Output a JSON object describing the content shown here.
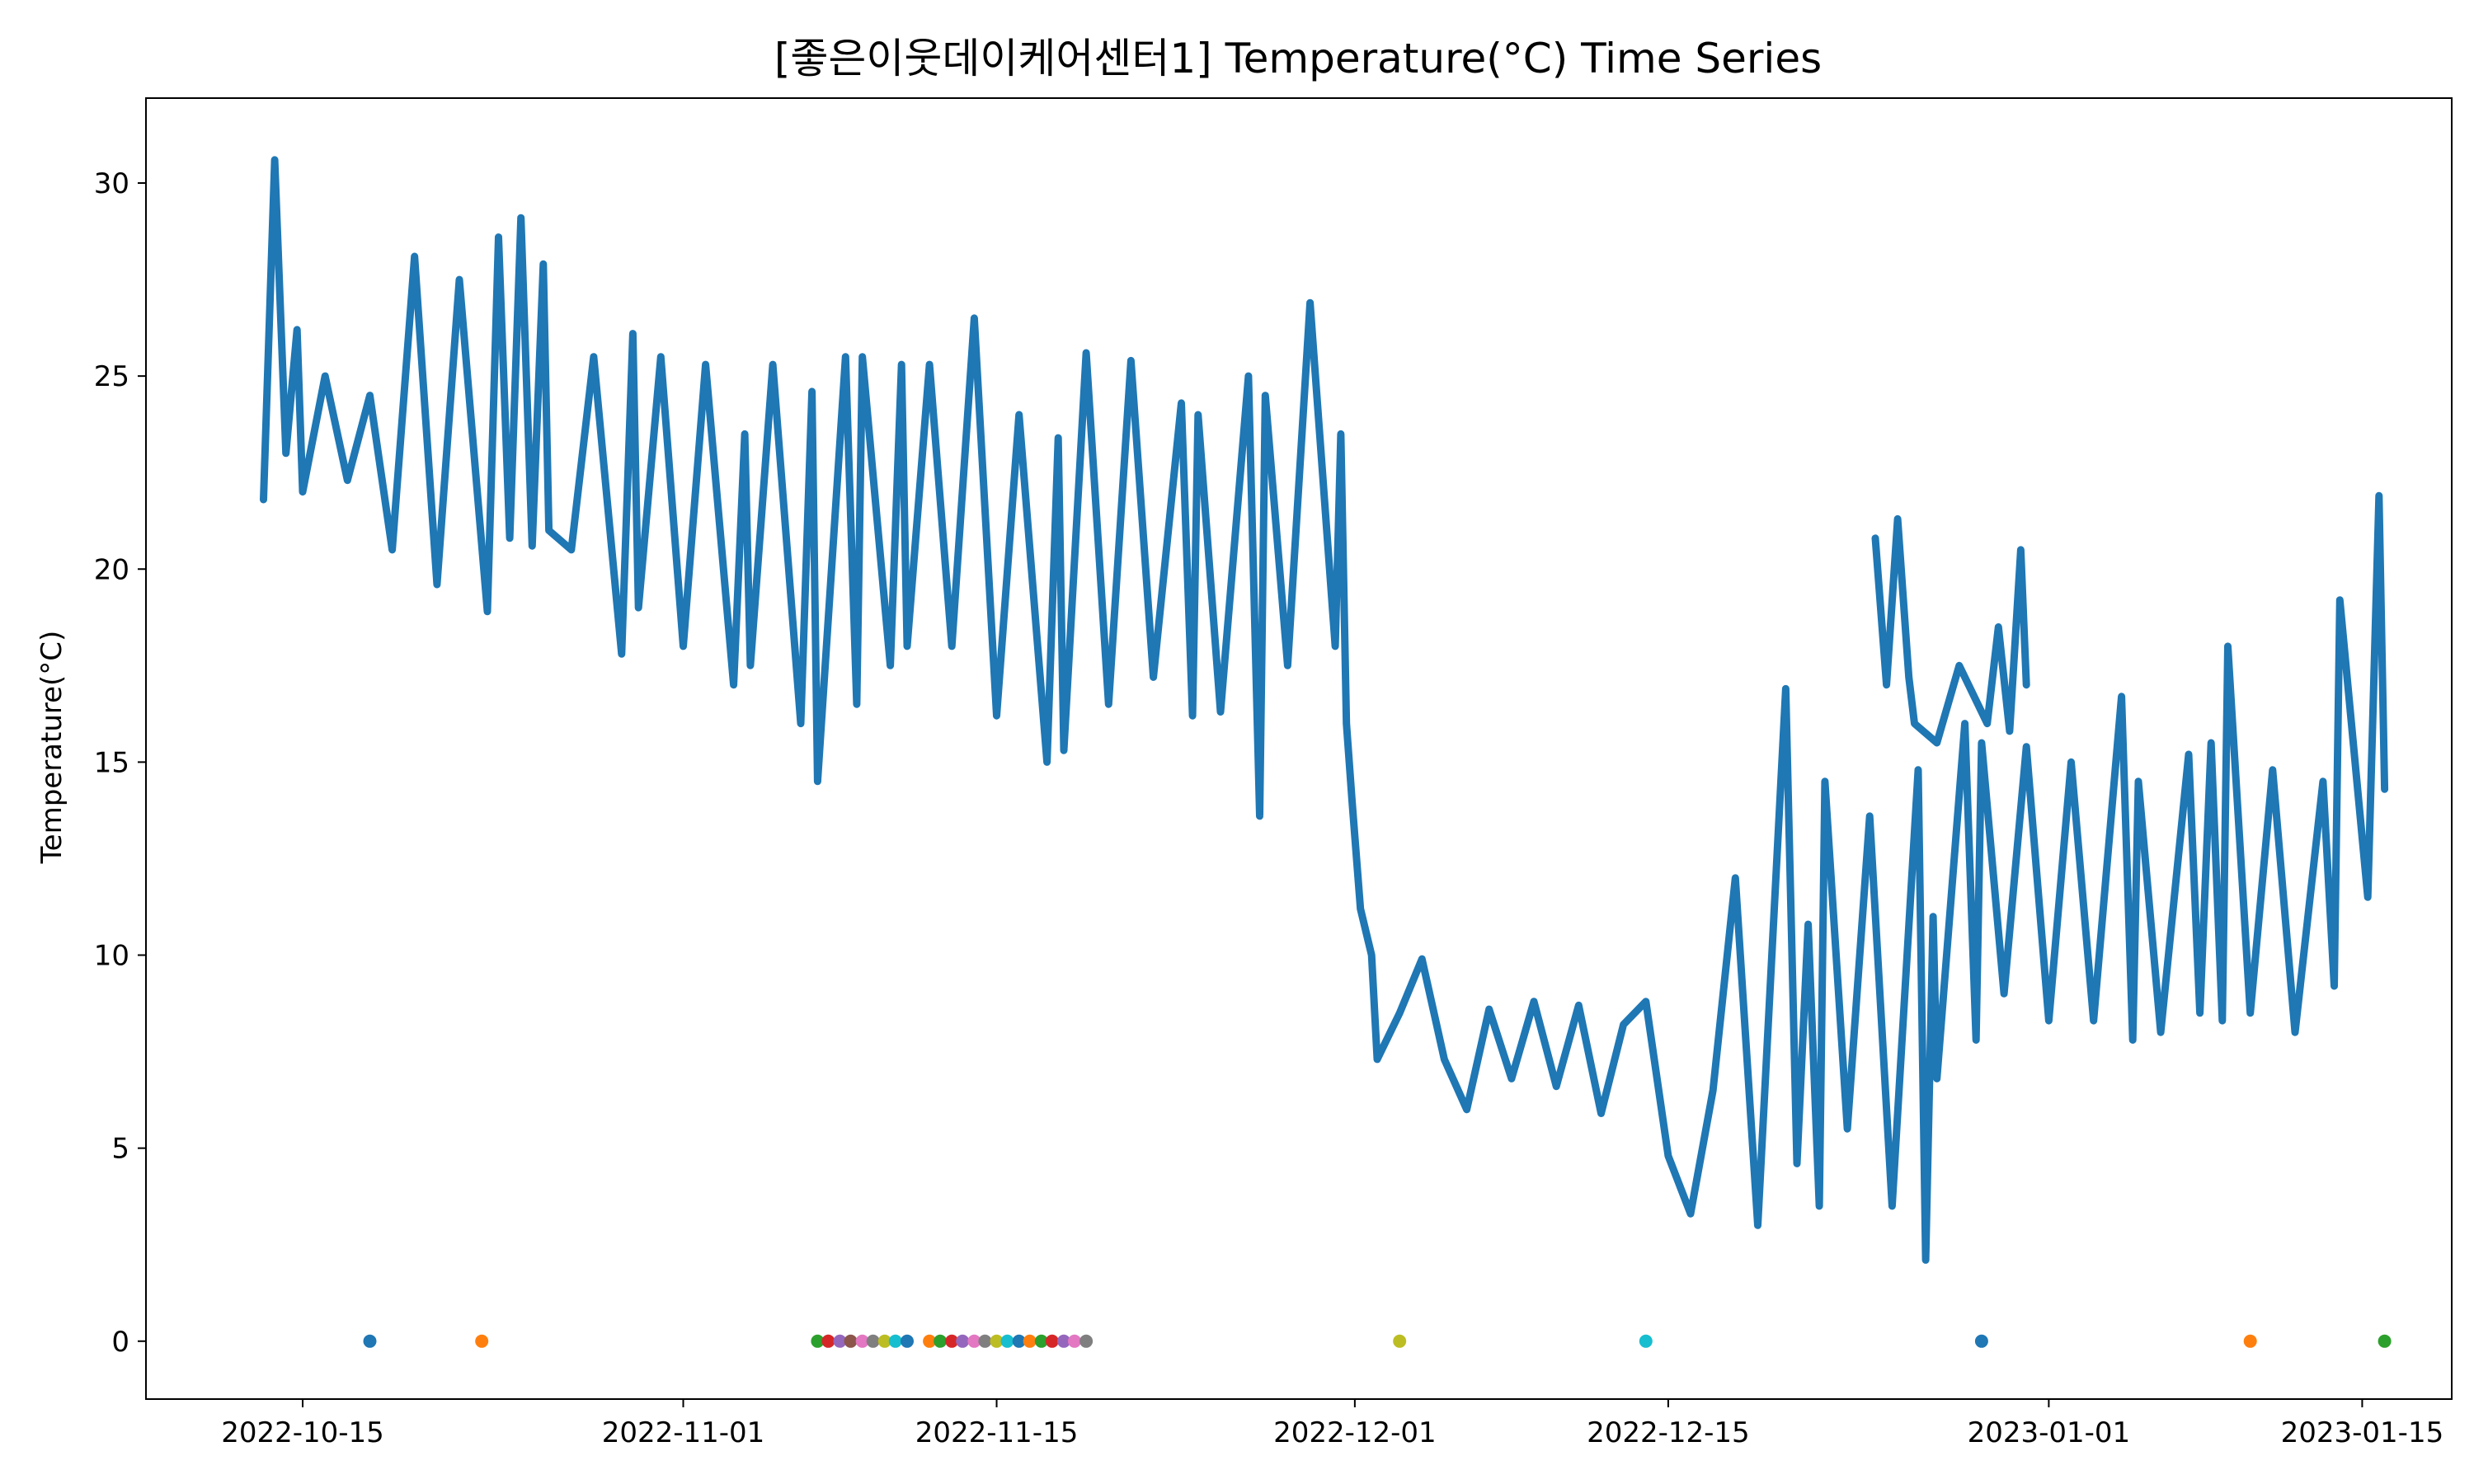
{
  "chart_data": {
    "type": "line",
    "title": "[좋은이웃데이케어센터1] Temperature(°C) Time Series",
    "xlabel": "",
    "ylabel": "Temperature(°C)",
    "xlim": [
      "2022-10-08",
      "2023-01-19"
    ],
    "ylim": [
      -1.5,
      32.2
    ],
    "grid": false,
    "x_ticks": [
      "2022-10-15",
      "2022-11-01",
      "2022-11-15",
      "2022-12-01",
      "2022-12-15",
      "2023-01-01",
      "2023-01-15"
    ],
    "y_ticks": [
      0,
      5,
      10,
      15,
      20,
      25,
      30
    ],
    "series": [
      {
        "color": "#1f77b4",
        "points": [
          [
            "2022-10-13",
            21.8
          ],
          [
            "2022-10-13",
            30.6
          ],
          [
            "2022-10-14",
            23.0
          ],
          [
            "2022-10-14",
            26.2
          ],
          [
            "2022-10-15",
            22.0
          ],
          [
            "2022-10-16",
            25.0
          ],
          [
            "2022-10-17",
            22.3
          ],
          [
            "2022-10-18",
            24.5
          ],
          [
            "2022-10-19",
            20.5
          ],
          [
            "2022-10-20",
            28.1
          ],
          [
            "2022-10-21",
            19.6
          ],
          [
            "2022-10-22",
            27.5
          ],
          [
            "2022-10-23",
            18.9
          ],
          [
            "2022-10-23",
            28.6
          ],
          [
            "2022-10-24",
            20.8
          ],
          [
            "2022-10-24",
            29.1
          ],
          [
            "2022-10-25",
            20.6
          ],
          [
            "2022-10-25",
            27.9
          ],
          [
            "2022-10-26",
            21.0
          ],
          [
            "2022-10-27",
            20.5
          ],
          [
            "2022-10-28",
            25.5
          ],
          [
            "2022-10-29",
            17.8
          ],
          [
            "2022-10-29",
            26.1
          ],
          [
            "2022-10-30",
            19.0
          ],
          [
            "2022-10-31",
            25.5
          ],
          [
            "2022-11-01",
            18.0
          ],
          [
            "2022-11-02",
            25.3
          ],
          [
            "2022-11-03",
            17.0
          ],
          [
            "2022-11-03",
            23.5
          ],
          [
            "2022-11-04",
            17.5
          ],
          [
            "2022-11-05",
            25.3
          ],
          [
            "2022-11-06",
            16.0
          ],
          [
            "2022-11-06",
            24.6
          ],
          [
            "2022-11-07",
            14.5
          ],
          [
            "2022-11-08",
            25.5
          ],
          [
            "2022-11-08",
            16.5
          ],
          [
            "2022-11-09",
            25.5
          ],
          [
            "2022-11-10",
            17.5
          ],
          [
            "2022-11-10",
            25.3
          ],
          [
            "2022-11-11",
            18.0
          ],
          [
            "2022-11-12",
            25.3
          ],
          [
            "2022-11-13",
            18.0
          ],
          [
            "2022-11-14",
            26.5
          ],
          [
            "2022-11-15",
            16.2
          ],
          [
            "2022-11-16",
            24.0
          ],
          [
            "2022-11-17",
            15.0
          ],
          [
            "2022-11-17",
            23.4
          ],
          [
            "2022-11-18",
            15.3
          ],
          [
            "2022-11-19",
            25.6
          ],
          [
            "2022-11-20",
            16.5
          ],
          [
            "2022-11-21",
            25.4
          ],
          [
            "2022-11-22",
            17.2
          ],
          [
            "2022-11-23",
            24.3
          ],
          [
            "2022-11-23",
            16.2
          ],
          [
            "2022-11-24",
            24.0
          ],
          [
            "2022-11-25",
            16.3
          ],
          [
            "2022-11-26",
            25.0
          ],
          [
            "2022-11-26",
            13.6
          ],
          [
            "2022-11-27",
            24.5
          ],
          [
            "2022-11-28",
            17.5
          ],
          [
            "2022-11-29",
            26.9
          ],
          [
            "2022-11-30",
            18.0
          ],
          [
            "2022-11-30",
            23.5
          ],
          [
            "2022-11-30",
            16.0
          ],
          [
            "2022-11-30",
            14.0
          ],
          [
            "2022-12-01",
            11.2
          ],
          [
            "2022-12-01",
            10.0
          ],
          [
            "2022-12-02",
            7.3
          ],
          [
            "2022-12-03",
            8.5
          ],
          [
            "2022-12-04",
            9.9
          ],
          [
            "2022-12-05",
            7.3
          ],
          [
            "2022-12-06",
            6.0
          ],
          [
            "2022-12-07",
            8.6
          ],
          [
            "2022-12-08",
            6.8
          ],
          [
            "2022-12-09",
            8.8
          ],
          [
            "2022-12-10",
            6.6
          ],
          [
            "2022-12-11",
            8.7
          ],
          [
            "2022-12-12",
            5.9
          ],
          [
            "2022-12-13",
            8.2
          ],
          [
            "2022-12-14",
            8.8
          ],
          [
            "2022-12-15",
            4.8
          ],
          [
            "2022-12-16",
            3.3
          ],
          [
            "2022-12-17",
            6.5
          ],
          [
            "2022-12-18",
            12.0
          ],
          [
            "2022-12-19",
            3.0
          ],
          [
            "2022-12-20",
            16.9
          ],
          [
            "2022-12-20",
            4.6
          ],
          [
            "2022-12-21",
            10.8
          ],
          [
            "2022-12-21",
            3.5
          ],
          [
            "2022-12-22",
            14.5
          ],
          [
            "2022-12-23",
            5.5
          ],
          [
            "2022-12-24",
            13.6
          ],
          [
            "2022-12-25",
            3.5
          ],
          [
            "2022-12-26",
            14.8
          ],
          [
            "2022-12-26",
            2.1
          ],
          [
            "2022-12-26",
            11.0
          ],
          [
            "2022-12-27",
            6.8
          ],
          [
            "2022-12-28",
            16.0
          ],
          [
            "2022-12-28",
            7.8
          ],
          [
            "2022-12-29",
            15.5
          ],
          [
            "2022-12-30",
            9.0
          ],
          [
            "2022-12-31",
            15.4
          ],
          [
            "2023-01-01",
            8.3
          ],
          [
            "2023-01-02",
            15.0
          ],
          [
            "2023-01-03",
            8.3
          ],
          [
            "2023-01-04",
            16.7
          ],
          [
            "2023-01-04",
            7.8
          ],
          [
            "2023-01-05",
            14.5
          ],
          [
            "2023-01-06",
            8.0
          ],
          [
            "2023-01-07",
            15.2
          ],
          [
            "2023-01-07",
            8.5
          ],
          [
            "2023-01-08",
            15.5
          ],
          [
            "2023-01-08",
            8.3
          ],
          [
            "2023-01-09",
            18.0
          ],
          [
            "2023-01-10",
            8.5
          ],
          [
            "2023-01-11",
            14.8
          ],
          [
            "2023-01-12",
            8.0
          ],
          [
            "2023-01-13",
            14.5
          ],
          [
            "2023-01-13",
            9.2
          ],
          [
            "2023-01-14",
            19.2
          ],
          [
            "2023-01-15",
            11.5
          ],
          [
            "2023-01-15",
            21.9
          ],
          [
            "2023-01-16",
            14.3
          ]
        ]
      },
      {
        "color": "#1f77b4",
        "points": [
          [
            "2022-12-24",
            20.8
          ],
          [
            "2022-12-24",
            17.0
          ],
          [
            "2022-12-25",
            21.3
          ],
          [
            "2022-12-25",
            17.2
          ],
          [
            "2022-12-26",
            16.0
          ],
          [
            "2022-12-27",
            15.5
          ],
          [
            "2022-12-28",
            17.5
          ],
          [
            "2022-12-29",
            16.0
          ],
          [
            "2022-12-29",
            18.5
          ],
          [
            "2022-12-30",
            15.8
          ],
          [
            "2022-12-30",
            20.5
          ],
          [
            "2022-12-31",
            17.0
          ]
        ]
      }
    ],
    "zero_markers": [
      {
        "x": "2022-10-18",
        "y": 0,
        "color": "#1f77b4"
      },
      {
        "x": "2022-10-23",
        "y": 0,
        "color": "#ff7f0e"
      },
      {
        "x": "2022-11-07",
        "y": 0,
        "color": "#2ca02c"
      },
      {
        "x": "2022-11-07",
        "y": 0,
        "color": "#d62728"
      },
      {
        "x": "2022-11-08",
        "y": 0,
        "color": "#9467bd"
      },
      {
        "x": "2022-11-08",
        "y": 0,
        "color": "#8c564b"
      },
      {
        "x": "2022-11-09",
        "y": 0,
        "color": "#e377c2"
      },
      {
        "x": "2022-11-09",
        "y": 0,
        "color": "#7f7f7f"
      },
      {
        "x": "2022-11-10",
        "y": 0,
        "color": "#bcbd22"
      },
      {
        "x": "2022-11-10",
        "y": 0,
        "color": "#17becf"
      },
      {
        "x": "2022-11-11",
        "y": 0,
        "color": "#1f77b4"
      },
      {
        "x": "2022-11-12",
        "y": 0,
        "color": "#ff7f0e"
      },
      {
        "x": "2022-11-12",
        "y": 0,
        "color": "#2ca02c"
      },
      {
        "x": "2022-11-13",
        "y": 0,
        "color": "#d62728"
      },
      {
        "x": "2022-11-13",
        "y": 0,
        "color": "#9467bd"
      },
      {
        "x": "2022-11-14",
        "y": 0,
        "color": "#e377c2"
      },
      {
        "x": "2022-11-14",
        "y": 0,
        "color": "#7f7f7f"
      },
      {
        "x": "2022-11-15",
        "y": 0,
        "color": "#bcbd22"
      },
      {
        "x": "2022-11-15",
        "y": 0,
        "color": "#17becf"
      },
      {
        "x": "2022-11-16",
        "y": 0,
        "color": "#1f77b4"
      },
      {
        "x": "2022-11-16",
        "y": 0,
        "color": "#ff7f0e"
      },
      {
        "x": "2022-11-17",
        "y": 0,
        "color": "#2ca02c"
      },
      {
        "x": "2022-11-17",
        "y": 0,
        "color": "#d62728"
      },
      {
        "x": "2022-11-18",
        "y": 0,
        "color": "#9467bd"
      },
      {
        "x": "2022-11-18",
        "y": 0,
        "color": "#e377c2"
      },
      {
        "x": "2022-11-19",
        "y": 0,
        "color": "#7f7f7f"
      },
      {
        "x": "2022-12-03",
        "y": 0,
        "color": "#bcbd22"
      },
      {
        "x": "2022-12-14",
        "y": 0,
        "color": "#17becf"
      },
      {
        "x": "2022-12-29",
        "y": 0,
        "color": "#1f77b4"
      },
      {
        "x": "2023-01-10",
        "y": 0,
        "color": "#ff7f0e"
      },
      {
        "x": "2023-01-16",
        "y": 0,
        "color": "#2ca02c"
      }
    ]
  }
}
